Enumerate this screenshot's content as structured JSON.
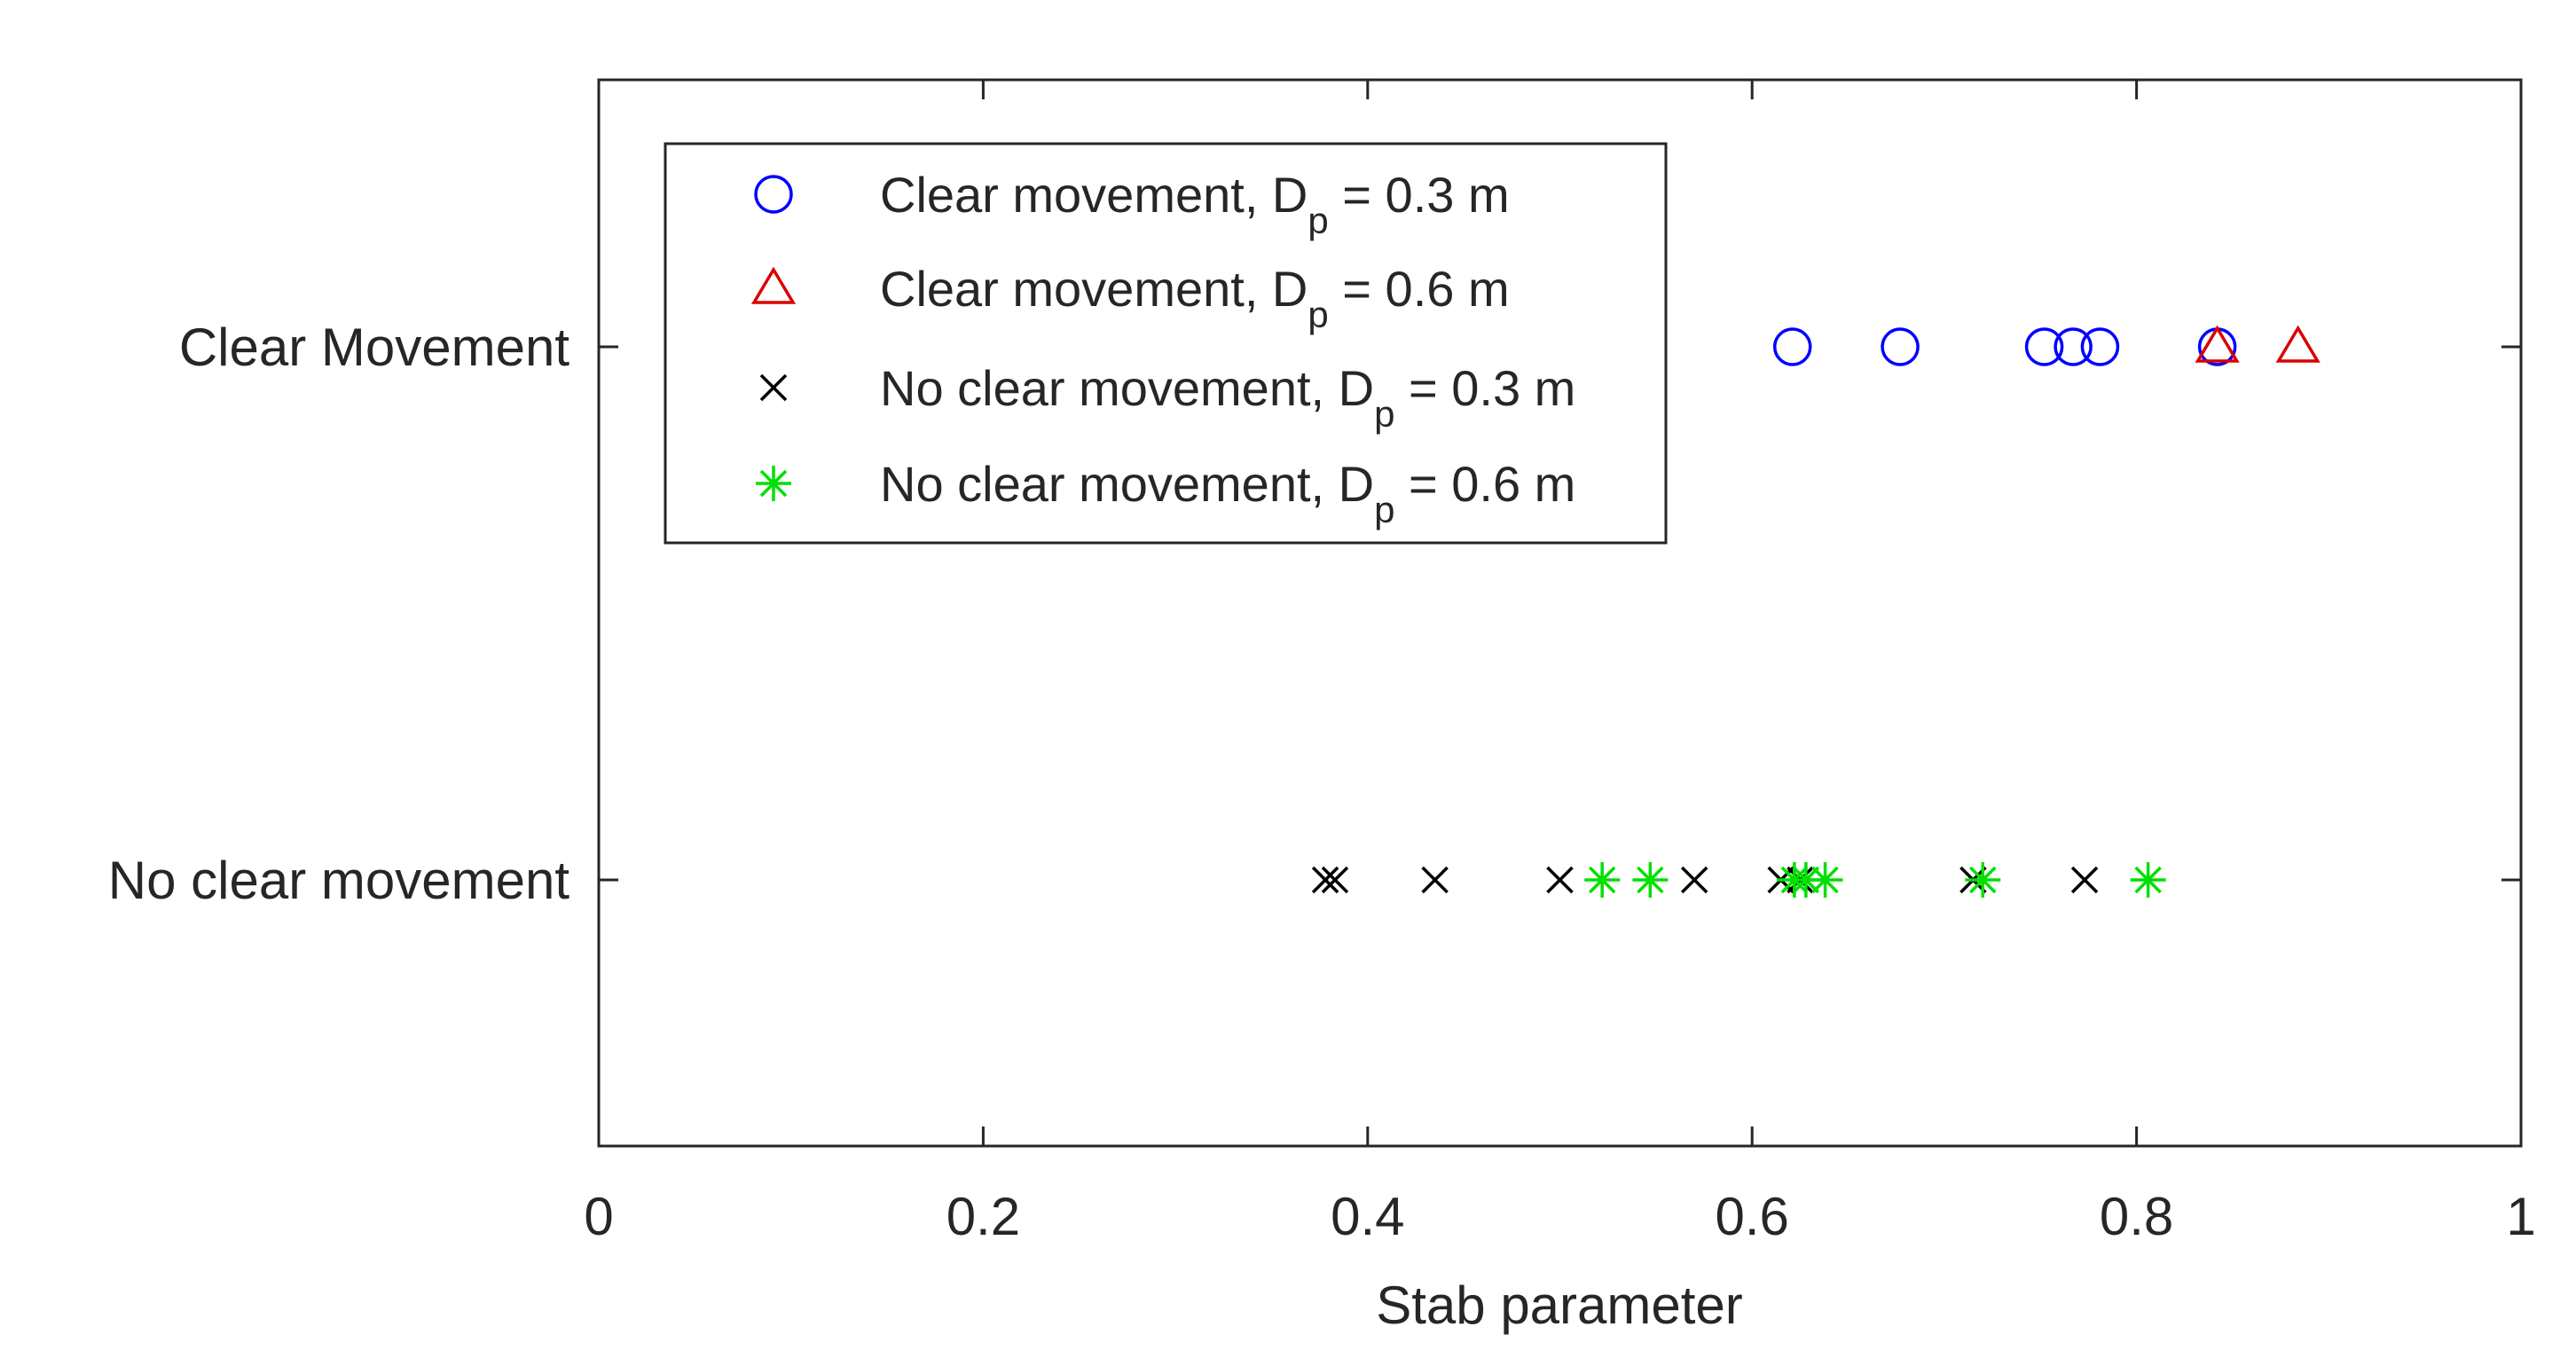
{
  "chart_data": {
    "type": "scatter",
    "title": "",
    "xlabel": "Stab parameter",
    "ylabel": "",
    "xlim": [
      0,
      1
    ],
    "xticks": [
      "0",
      "0.2",
      "0.4",
      "0.6",
      "0.8",
      "1"
    ],
    "y_categories": [
      "No clear movement",
      "Clear Movement"
    ],
    "grid": false,
    "legend_position": "top-left",
    "series": [
      {
        "name": "Clear movement, D_p = 0.3 m",
        "legend": {
          "prefix": "Clear movement, D",
          "sub": "p",
          "suffix": " = 0.3 m"
        },
        "marker": "circle",
        "color": "#0000ff",
        "category": "Clear Movement",
        "x": [
          0.621,
          0.677,
          0.752,
          0.767,
          0.781,
          0.842
        ]
      },
      {
        "name": "Clear movement, D_p = 0.6 m",
        "legend": {
          "prefix": "Clear movement, D",
          "sub": "p",
          "suffix": " = 0.6 m"
        },
        "marker": "triangle",
        "color": "#d90000",
        "category": "Clear Movement",
        "x": [
          0.842,
          0.884
        ]
      },
      {
        "name": "No clear movement, D_p = 0.3 m",
        "legend": {
          "prefix": "No clear movement, D",
          "sub": "p",
          "suffix": " = 0.3 m"
        },
        "marker": "x",
        "color": "#000000",
        "category": "No clear movement",
        "x": [
          0.378,
          0.383,
          0.435,
          0.5,
          0.57,
          0.615,
          0.625,
          0.715,
          0.773
        ]
      },
      {
        "name": "No clear movement, D_p = 0.6 m",
        "legend": {
          "prefix": "No clear movement, D",
          "sub": "p",
          "suffix": " = 0.6 m"
        },
        "marker": "asterisk",
        "color": "#00e000",
        "category": "No clear movement",
        "x": [
          0.522,
          0.547,
          0.622,
          0.628,
          0.638,
          0.72,
          0.806
        ]
      }
    ]
  }
}
